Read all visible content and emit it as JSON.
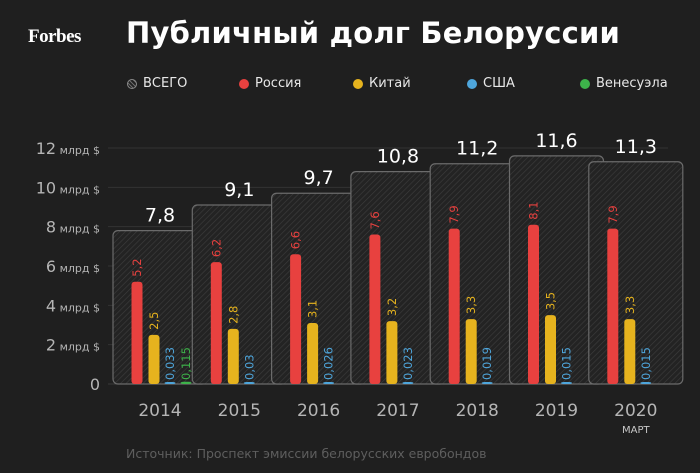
{
  "header": {
    "logo": "Forbes",
    "title": "Публичный долг Белоруссии"
  },
  "legend": [
    {
      "label": "ВСЕГО",
      "color": "#8a8a8a",
      "pattern": true
    },
    {
      "label": "Россия",
      "color": "#e8413f"
    },
    {
      "label": "Китай",
      "color": "#e6b31e"
    },
    {
      "label": "США",
      "color": "#4ea6dc"
    },
    {
      "label": "Венесуэла",
      "color": "#3db34a"
    }
  ],
  "source": "Источник: Проспект эмиссии белорусских евробондов",
  "chart_data": {
    "type": "bar",
    "title": "Публичный долг Белоруссии",
    "xlabel": "",
    "ylabel": "",
    "ylim": [
      0,
      12
    ],
    "grid": true,
    "legend_position": "top",
    "y_ticks": [
      {
        "value": 0,
        "label": "0",
        "unit": ""
      },
      {
        "value": 2,
        "label": "2",
        "unit": "млрд $"
      },
      {
        "value": 4,
        "label": "4",
        "unit": "млрд $"
      },
      {
        "value": 6,
        "label": "6",
        "unit": "млрд $"
      },
      {
        "value": 8,
        "label": "8",
        "unit": "млрд $"
      },
      {
        "value": 10,
        "label": "10",
        "unit": "млрд $"
      },
      {
        "value": 12,
        "label": "12",
        "unit": "млрд $"
      }
    ],
    "categories": [
      "2014",
      "2015",
      "2016",
      "2017",
      "2018",
      "2019",
      "2020"
    ],
    "category_sublabels": [
      "",
      "",
      "",
      "",
      "",
      "",
      "МАРТ"
    ],
    "total": {
      "name": "ВСЕГО",
      "values": [
        7.8,
        9.1,
        9.7,
        10.8,
        11.2,
        11.6,
        11.3
      ],
      "labels": [
        "7,8",
        "9,1",
        "9,7",
        "10,8",
        "11,2",
        "11,6",
        "11,3"
      ]
    },
    "series": [
      {
        "name": "Россия",
        "color": "#e8413f",
        "values": [
          5.2,
          6.2,
          6.6,
          7.6,
          7.9,
          8.1,
          7.9
        ],
        "labels": [
          "5,2",
          "6,2",
          "6,6",
          "7,6",
          "7,9",
          "8,1",
          "7,9"
        ]
      },
      {
        "name": "Китай",
        "color": "#e6b31e",
        "values": [
          2.5,
          2.8,
          3.1,
          3.2,
          3.3,
          3.5,
          3.3
        ],
        "labels": [
          "2,5",
          "2,8",
          "3,1",
          "3,2",
          "3,3",
          "3,5",
          "3,3"
        ]
      },
      {
        "name": "США",
        "color": "#4ea6dc",
        "values": [
          0.033,
          0.03,
          0.026,
          0.023,
          0.019,
          0.015,
          0.015
        ],
        "labels": [
          "0,033",
          "0,03",
          "0,026",
          "0,023",
          "0,019",
          "0,015",
          "0,015"
        ]
      },
      {
        "name": "Венесуэла",
        "color": "#3db34a",
        "values": [
          0.115,
          null,
          null,
          null,
          null,
          null,
          null
        ],
        "labels": [
          "0,115",
          "",
          "",
          "",
          "",
          "",
          ""
        ]
      }
    ]
  }
}
